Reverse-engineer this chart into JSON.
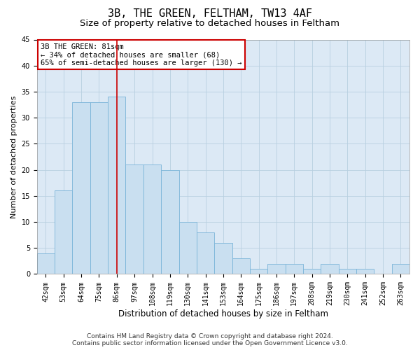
{
  "title": "3B, THE GREEN, FELTHAM, TW13 4AF",
  "subtitle": "Size of property relative to detached houses in Feltham",
  "xlabel": "Distribution of detached houses by size in Feltham",
  "ylabel": "Number of detached properties",
  "categories": [
    "42sqm",
    "53sqm",
    "64sqm",
    "75sqm",
    "86sqm",
    "97sqm",
    "108sqm",
    "119sqm",
    "130sqm",
    "141sqm",
    "153sqm",
    "164sqm",
    "175sqm",
    "186sqm",
    "197sqm",
    "208sqm",
    "219sqm",
    "230sqm",
    "241sqm",
    "252sqm",
    "263sqm"
  ],
  "values": [
    4,
    16,
    33,
    33,
    34,
    21,
    21,
    20,
    10,
    8,
    6,
    3,
    1,
    2,
    2,
    1,
    2,
    1,
    1,
    0,
    2
  ],
  "bar_color": "#c9dff0",
  "bar_edge_color": "#7ab4d8",
  "ylim": [
    0,
    45
  ],
  "yticks": [
    0,
    5,
    10,
    15,
    20,
    25,
    30,
    35,
    40,
    45
  ],
  "vline_x": 4.0,
  "vline_color": "#cc0000",
  "annotation_line1": "3B THE GREEN: 81sqm",
  "annotation_line2": "← 34% of detached houses are smaller (68)",
  "annotation_line3": "65% of semi-detached houses are larger (130) →",
  "footer_line1": "Contains HM Land Registry data © Crown copyright and database right 2024.",
  "footer_line2": "Contains public sector information licensed under the Open Government Licence v3.0.",
  "background_color": "#ffffff",
  "plot_bg_color": "#dce9f5",
  "grid_color": "#b8cfe0",
  "title_fontsize": 11,
  "subtitle_fontsize": 9.5,
  "ylabel_fontsize": 8,
  "xlabel_fontsize": 8.5,
  "tick_fontsize": 7,
  "annot_fontsize": 7.5,
  "footer_fontsize": 6.5
}
